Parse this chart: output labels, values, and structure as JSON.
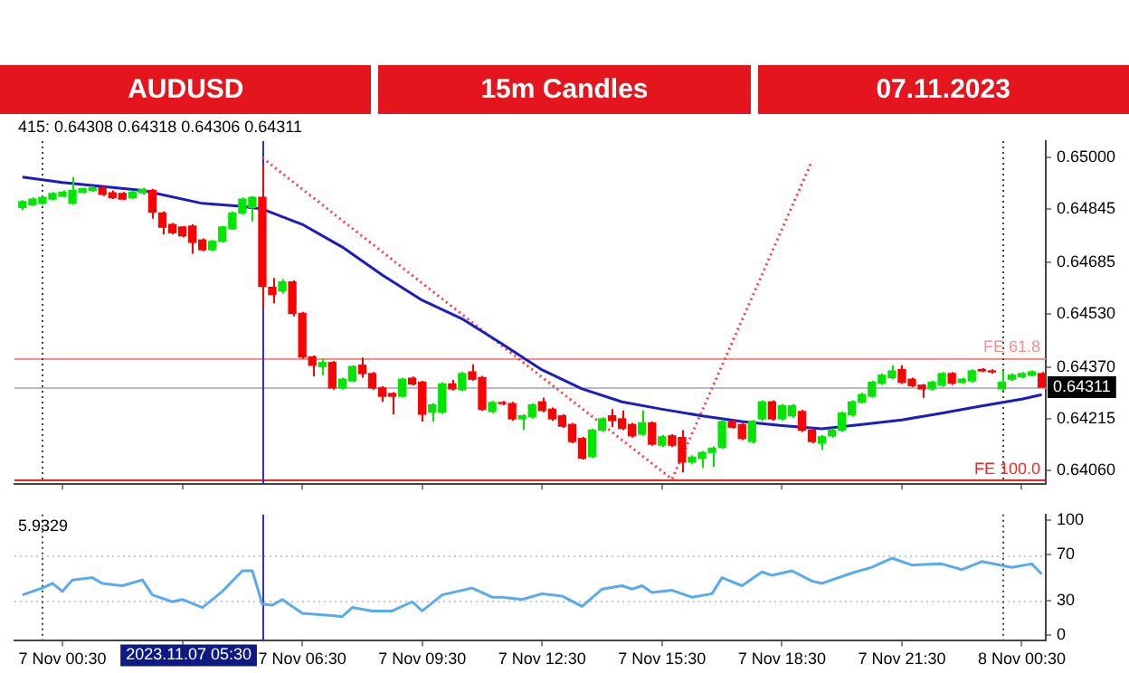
{
  "chart_data": [
    {
      "type": "candlestick",
      "title": "AUDUSD",
      "subtitle": "15m Candles",
      "annotations": [
        "07.11.2023",
        "415: 0.64308 0.64318 0.64306 0.64311",
        {
          "text": "0.64311",
          "y": 0.64311
        }
      ],
      "x": [
        "2023-11-06T23:30",
        "2023-11-06T23:45",
        "2023-11-07T00:00",
        "2023-11-07T00:15",
        "2023-11-07T00:30",
        "2023-11-07T00:45",
        "2023-11-07T01:00",
        "2023-11-07T01:15",
        "2023-11-07T01:30",
        "2023-11-07T01:45",
        "2023-11-07T02:00",
        "2023-11-07T02:15",
        "2023-11-07T02:30",
        "2023-11-07T02:45",
        "2023-11-07T03:00",
        "2023-11-07T03:15",
        "2023-11-07T03:30",
        "2023-11-07T03:45",
        "2023-11-07T04:00",
        "2023-11-07T04:15",
        "2023-11-07T04:30",
        "2023-11-07T04:45",
        "2023-11-07T05:00",
        "2023-11-07T05:15",
        "2023-11-07T05:30",
        "2023-11-07T05:45",
        "2023-11-07T06:00",
        "2023-11-07T06:15",
        "2023-11-07T06:30",
        "2023-11-07T06:45",
        "2023-11-07T07:00",
        "2023-11-07T07:15",
        "2023-11-07T07:30",
        "2023-11-07T07:45",
        "2023-11-07T08:00",
        "2023-11-07T08:15",
        "2023-11-07T08:30",
        "2023-11-07T08:45",
        "2023-11-07T09:00",
        "2023-11-07T09:15",
        "2023-11-07T09:30",
        "2023-11-07T09:45",
        "2023-11-07T10:00",
        "2023-11-07T10:15",
        "2023-11-07T10:30",
        "2023-11-07T10:45",
        "2023-11-07T11:00",
        "2023-11-07T11:15",
        "2023-11-07T11:30",
        "2023-11-07T11:45",
        "2023-11-07T12:00",
        "2023-11-07T12:15",
        "2023-11-07T12:30",
        "2023-11-07T12:45",
        "2023-11-07T13:00",
        "2023-11-07T13:15",
        "2023-11-07T13:30",
        "2023-11-07T13:45",
        "2023-11-07T14:00",
        "2023-11-07T14:15",
        "2023-11-07T14:30",
        "2023-11-07T14:45",
        "2023-11-07T15:00",
        "2023-11-07T15:15",
        "2023-11-07T15:30",
        "2023-11-07T15:45",
        "2023-11-07T16:00",
        "2023-11-07T16:15",
        "2023-11-07T16:30",
        "2023-11-07T16:45",
        "2023-11-07T17:00",
        "2023-11-07T17:15",
        "2023-11-07T17:30",
        "2023-11-07T17:45",
        "2023-11-07T18:00",
        "2023-11-07T18:15",
        "2023-11-07T18:30",
        "2023-11-07T18:45",
        "2023-11-07T19:00",
        "2023-11-07T19:15",
        "2023-11-07T19:30",
        "2023-11-07T19:45",
        "2023-11-07T20:00",
        "2023-11-07T20:15",
        "2023-11-07T20:30",
        "2023-11-07T20:45",
        "2023-11-07T21:00",
        "2023-11-07T21:15",
        "2023-11-07T21:30",
        "2023-11-07T21:45",
        "2023-11-07T22:00",
        "2023-11-07T22:15",
        "2023-11-07T22:30",
        "2023-11-07T22:45",
        "2023-11-07T23:00",
        "2023-11-07T23:15",
        "2023-11-07T23:30",
        "2023-11-07T23:45",
        "2023-11-08T00:00",
        "2023-11-08T00:15",
        "2023-11-08T00:30",
        "2023-11-08T00:45",
        "2023-11-08T01:00"
      ],
      "ohlc": [
        [
          0.64851,
          0.64873,
          0.64843,
          0.64868
        ],
        [
          0.64859,
          0.64881,
          0.64856,
          0.64876
        ],
        [
          0.64864,
          0.64885,
          0.64859,
          0.64881
        ],
        [
          0.64876,
          0.64897,
          0.64873,
          0.64893
        ],
        [
          0.64885,
          0.64902,
          0.64881,
          0.64897
        ],
        [
          0.64864,
          0.64942,
          0.64859,
          0.64902
        ],
        [
          0.64897,
          0.6491,
          0.64893,
          0.64907
        ],
        [
          0.64902,
          0.64915,
          0.64897,
          0.6491
        ],
        [
          0.6491,
          0.64915,
          0.64885,
          0.6489
        ],
        [
          0.64895,
          0.64902,
          0.64876,
          0.64881
        ],
        [
          0.64893,
          0.64897,
          0.64873,
          0.64876
        ],
        [
          0.64881,
          0.64902,
          0.64876,
          0.64897
        ],
        [
          0.64895,
          0.6491,
          0.6489,
          0.64905
        ],
        [
          0.64902,
          0.64907,
          0.64817,
          0.64837
        ],
        [
          0.64834,
          0.64839,
          0.6477,
          0.64792
        ],
        [
          0.648,
          0.64804,
          0.6477,
          0.64775
        ],
        [
          0.64792,
          0.64795,
          0.64761,
          0.64766
        ],
        [
          0.64795,
          0.648,
          0.64712,
          0.64746
        ],
        [
          0.64753,
          0.64758,
          0.64719,
          0.64724
        ],
        [
          0.64724,
          0.64753,
          0.64719,
          0.64749
        ],
        [
          0.64749,
          0.64795,
          0.64746,
          0.64792
        ],
        [
          0.64787,
          0.64839,
          0.64783,
          0.64834
        ],
        [
          0.64834,
          0.64881,
          0.64829,
          0.64876
        ],
        [
          0.64851,
          0.64885,
          0.64809,
          0.64881
        ],
        [
          0.64881,
          0.64978,
          0.64546,
          0.64614
        ],
        [
          0.64611,
          0.64639,
          0.64563,
          0.64589
        ],
        [
          0.646,
          0.64636,
          0.64592,
          0.64627
        ],
        [
          0.64627,
          0.64632,
          0.64524,
          0.64533
        ],
        [
          0.64533,
          0.64537,
          0.64397,
          0.64402
        ],
        [
          0.64402,
          0.64406,
          0.64343,
          0.64377
        ],
        [
          0.64373,
          0.64397,
          0.64347,
          0.64385
        ],
        [
          0.64385,
          0.6439,
          0.64304,
          0.64309
        ],
        [
          0.64309,
          0.6434,
          0.64304,
          0.64335
        ],
        [
          0.6433,
          0.64377,
          0.64326,
          0.64373
        ],
        [
          0.64377,
          0.644,
          0.6434,
          0.64352
        ],
        [
          0.64352,
          0.64357,
          0.64304,
          0.64309
        ],
        [
          0.64309,
          0.64314,
          0.64267,
          0.64284
        ],
        [
          0.64292,
          0.64296,
          0.6423,
          0.64284
        ],
        [
          0.64284,
          0.6434,
          0.6428,
          0.64335
        ],
        [
          0.64338,
          0.64343,
          0.64316,
          0.64321
        ],
        [
          0.64326,
          0.6433,
          0.64208,
          0.6423
        ],
        [
          0.64236,
          0.64262,
          0.64208,
          0.64258
        ],
        [
          0.64236,
          0.64326,
          0.64231,
          0.64321
        ],
        [
          0.64321,
          0.64333,
          0.64301,
          0.64306
        ],
        [
          0.64304,
          0.64357,
          0.64299,
          0.64352
        ],
        [
          0.64357,
          0.6438,
          0.64331,
          0.64335
        ],
        [
          0.6434,
          0.64345,
          0.6424,
          0.64245
        ],
        [
          0.64238,
          0.6427,
          0.64233,
          0.64265
        ],
        [
          0.64265,
          0.6427,
          0.64257,
          0.64262
        ],
        [
          0.64262,
          0.64267,
          0.64211,
          0.64216
        ],
        [
          0.64216,
          0.6423,
          0.64182,
          0.64225
        ],
        [
          0.64222,
          0.64262,
          0.64217,
          0.64258
        ],
        [
          0.64267,
          0.6428,
          0.64236,
          0.64241
        ],
        [
          0.64245,
          0.6425,
          0.64211,
          0.64216
        ],
        [
          0.64225,
          0.6423,
          0.64189,
          0.64194
        ],
        [
          0.64199,
          0.64204,
          0.64143,
          0.64148
        ],
        [
          0.64157,
          0.64162,
          0.64094,
          0.64098
        ],
        [
          0.64103,
          0.64187,
          0.64098,
          0.64182
        ],
        [
          0.64182,
          0.64221,
          0.64177,
          0.64216
        ],
        [
          0.64225,
          0.64245,
          0.64191,
          0.64211
        ],
        [
          0.64216,
          0.64241,
          0.64182,
          0.64187
        ],
        [
          0.64199,
          0.64204,
          0.6416,
          0.64165
        ],
        [
          0.6417,
          0.64241,
          0.64165,
          0.64204
        ],
        [
          0.64204,
          0.64208,
          0.64135,
          0.6414
        ],
        [
          0.64137,
          0.64167,
          0.64131,
          0.64162
        ],
        [
          0.64165,
          0.6417,
          0.64131,
          0.64137
        ],
        [
          0.6416,
          0.64182,
          0.64055,
          0.64086
        ],
        [
          0.64086,
          0.64106,
          0.64081,
          0.64101
        ],
        [
          0.64098,
          0.6412,
          0.64069,
          0.64115
        ],
        [
          0.64115,
          0.64133,
          0.64072,
          0.64128
        ],
        [
          0.64131,
          0.64213,
          0.64126,
          0.64208
        ],
        [
          0.64208,
          0.64213,
          0.64187,
          0.64191
        ],
        [
          0.64199,
          0.64204,
          0.64152,
          0.64157
        ],
        [
          0.64148,
          0.64213,
          0.64143,
          0.64208
        ],
        [
          0.64216,
          0.64272,
          0.64211,
          0.64267
        ],
        [
          0.64267,
          0.64272,
          0.64211,
          0.64216
        ],
        [
          0.64216,
          0.6426,
          0.64211,
          0.64255
        ],
        [
          0.64225,
          0.6426,
          0.64219,
          0.64255
        ],
        [
          0.64238,
          0.64243,
          0.64177,
          0.64182
        ],
        [
          0.64182,
          0.64187,
          0.64143,
          0.64148
        ],
        [
          0.64143,
          0.64167,
          0.64123,
          0.64162
        ],
        [
          0.64165,
          0.64187,
          0.6416,
          0.64182
        ],
        [
          0.64182,
          0.64238,
          0.64177,
          0.64233
        ],
        [
          0.64228,
          0.64272,
          0.64223,
          0.64267
        ],
        [
          0.64267,
          0.64294,
          0.64262,
          0.64289
        ],
        [
          0.64284,
          0.64331,
          0.6428,
          0.64326
        ],
        [
          0.64323,
          0.64352,
          0.64318,
          0.64347
        ],
        [
          0.6434,
          0.64377,
          0.64335,
          0.6436
        ],
        [
          0.64364,
          0.64377,
          0.64321,
          0.64326
        ],
        [
          0.64335,
          0.6434,
          0.64311,
          0.64316
        ],
        [
          0.64317,
          0.64321,
          0.64279,
          0.64306
        ],
        [
          0.64306,
          0.64331,
          0.64301,
          0.64326
        ],
        [
          0.64317,
          0.64357,
          0.64312,
          0.64352
        ],
        [
          0.64352,
          0.64357,
          0.64318,
          0.64323
        ],
        [
          0.64326,
          0.6434,
          0.64321,
          0.64335
        ],
        [
          0.6433,
          0.64365,
          0.64325,
          0.6436
        ],
        [
          0.64364,
          0.64368,
          0.64357,
          0.6436
        ],
        [
          0.6436,
          0.64365,
          0.64352,
          0.64357
        ],
        [
          0.64306,
          0.6436,
          0.64301,
          0.64326
        ],
        [
          0.64335,
          0.64352,
          0.6433,
          0.64347
        ],
        [
          0.64343,
          0.64357,
          0.64338,
          0.64352
        ],
        [
          0.64347,
          0.64362,
          0.64343,
          0.64357
        ],
        [
          0.64352,
          0.64357,
          0.64311,
          0.64311
        ]
      ],
      "colors": [
        "#00e600",
        "#00e600",
        "#00e600",
        "#00e600",
        "#00e600",
        "#00e600",
        "#00e600",
        "#00e600",
        "#ff0000",
        "#ff0000",
        "#ff0000",
        "#00e600",
        "#00e600",
        "#ff0000",
        "#ff0000",
        "#ff0000",
        "#ff0000",
        "#ff0000",
        "#ff0000",
        "#00e600",
        "#00e600",
        "#00e600",
        "#00e600",
        "#00e600",
        "#ff0000",
        "#ff0000",
        "#00e600",
        "#ff0000",
        "#ff0000",
        "#ff0000",
        "#00e600",
        "#ff0000",
        "#00e600",
        "#00e600",
        "#ff0000",
        "#ff0000",
        "#ff0000",
        "#ff0000",
        "#00e600",
        "#ff0000",
        "#ff0000",
        "#00e600",
        "#00e600",
        "#ff0000",
        "#00e600",
        "#ff0000",
        "#ff0000",
        "#00e600",
        "#ff0000",
        "#ff0000",
        "#00e600",
        "#00e600",
        "#ff0000",
        "#ff0000",
        "#ff0000",
        "#ff0000",
        "#ff0000",
        "#00e600",
        "#00e600",
        "#ff0000",
        "#ff0000",
        "#ff0000",
        "#00e600",
        "#ff0000",
        "#00e600",
        "#ff0000",
        "#ff0000",
        "#00e600",
        "#00e600",
        "#00e600",
        "#00e600",
        "#ff0000",
        "#ff0000",
        "#00e600",
        "#00e600",
        "#ff0000",
        "#00e600",
        "#00e600",
        "#ff0000",
        "#ff0000",
        "#00e600",
        "#00e600",
        "#00e600",
        "#00e600",
        "#00e600",
        "#00e600",
        "#00e600",
        "#00e600",
        "#ff0000",
        "#ff0000",
        "#ff0000",
        "#00e600",
        "#00e600",
        "#ff0000",
        "#00e600",
        "#00e600",
        "#ff0000",
        "#ff0000",
        "#00e600",
        "#00e600",
        "#00e600",
        "#00e600",
        "#ff0000"
      ],
      "series": [
        {
          "type": "line",
          "color": "#1c1cc4",
          "x": [
            "2023-11-06T23:30",
            "2023-11-07T00:30",
            "2023-11-07T02:30",
            "2023-11-07T04:00",
            "2023-11-07T05:00",
            "2023-11-07T05:30",
            "2023-11-07T06:30",
            "2023-11-07T07:30",
            "2023-11-07T08:30",
            "2023-11-07T09:30",
            "2023-11-07T10:30",
            "2023-11-07T11:30",
            "2023-11-07T12:30",
            "2023-11-07T13:30",
            "2023-11-07T14:30",
            "2023-11-07T15:30",
            "2023-11-07T16:30",
            "2023-11-07T17:30",
            "2023-11-07T18:30",
            "2023-11-07T19:30",
            "2023-11-07T20:30",
            "2023-11-07T21:30",
            "2023-11-07T22:30",
            "2023-11-07T23:30",
            "2023-11-08T00:30",
            "2023-11-08T01:00"
          ],
          "values": [
            0.64942,
            0.64926,
            0.64902,
            0.64863,
            0.64854,
            0.64846,
            0.648,
            0.64732,
            0.64648,
            0.64572,
            0.64516,
            0.64441,
            0.64363,
            0.64306,
            0.64267,
            0.64245,
            0.64225,
            0.64208,
            0.64196,
            0.64186,
            0.64199,
            0.64213,
            0.64233,
            0.64255,
            0.64275,
            0.64289
          ]
        },
        {
          "type": "line",
          "color": "#ff3b3b",
          "line_style": "dotted",
          "x": [
            "2023-11-07T05:30",
            "2023-11-07T15:45",
            "2023-11-07T19:15"
          ],
          "values": [
            0.65,
            0.64035,
            0.6499
          ]
        }
      ],
      "ref_lines": [
        {
          "axis": "y",
          "value": 0.644,
          "label": "FE 61.8",
          "color": "#ff8c8c"
        },
        {
          "axis": "y",
          "value": 0.64035,
          "label": "FE 100.0",
          "color": "#ff2020"
        },
        {
          "axis": "y",
          "value": 0.64311,
          "label": null,
          "color": "#b8b8c8"
        },
        {
          "axis": "x",
          "value": "2023-11-07T05:30",
          "label": null,
          "color": "#3030c8"
        },
        {
          "axis": "x",
          "value": "2023-11-07T00:00",
          "label": null,
          "color": "#444444",
          "line_style": "dotted"
        },
        {
          "axis": "x",
          "value": "2023-11-08T00:00",
          "label": null,
          "color": "#444444",
          "line_style": "dotted"
        }
      ],
      "xlim": [
        "2023-11-06T23:18",
        "2023-11-08T01:06"
      ],
      "xticks": [
        {
          "value": "2023-11-07T00:30",
          "label": null
        },
        {
          "value": "2023-11-07T03:30",
          "label": null
        },
        {
          "value": "2023-11-07T06:30",
          "label": null
        },
        {
          "value": "2023-11-07T09:30",
          "label": null
        },
        {
          "value": "2023-11-07T12:30",
          "label": null
        },
        {
          "value": "2023-11-07T15:30",
          "label": null
        },
        {
          "value": "2023-11-07T18:30",
          "label": null
        },
        {
          "value": "2023-11-07T21:30",
          "label": null
        },
        {
          "value": "2023-11-08T00:30",
          "label": null
        }
      ],
      "ylim": [
        0.6402,
        0.6505
      ],
      "yticks": [
        {
          "value": 0.65,
          "label": "0.65000"
        },
        {
          "value": 0.64845,
          "label": "0.64845"
        },
        {
          "value": 0.64685,
          "label": "0.64685"
        },
        {
          "value": 0.6453,
          "label": "0.64530"
        },
        {
          "value": 0.6437,
          "label": "0.64370"
        },
        {
          "value": 0.64215,
          "label": "0.64215"
        },
        {
          "value": 0.6406,
          "label": "0.64060"
        }
      ],
      "tick_labels": "y"
    },
    {
      "type": "line",
      "color": "#5aaaf0",
      "annotations": [
        "5.9329"
      ],
      "x": [
        "2023-11-06T23:30",
        "2023-11-07T00:00",
        "2023-11-07T00:15",
        "2023-11-07T00:30",
        "2023-11-07T00:45",
        "2023-11-07T01:15",
        "2023-11-07T01:30",
        "2023-11-07T02:00",
        "2023-11-07T02:30",
        "2023-11-07T02:45",
        "2023-11-07T03:15",
        "2023-11-07T03:30",
        "2023-11-07T04:00",
        "2023-11-07T04:30",
        "2023-11-07T05:00",
        "2023-11-07T05:15",
        "2023-11-07T05:30",
        "2023-11-07T05:45",
        "2023-11-07T06:00",
        "2023-11-07T06:30",
        "2023-11-07T07:15",
        "2023-11-07T07:30",
        "2023-11-07T07:45",
        "2023-11-07T08:15",
        "2023-11-07T08:45",
        "2023-11-07T09:15",
        "2023-11-07T09:30",
        "2023-11-07T10:00",
        "2023-11-07T10:45",
        "2023-11-07T11:15",
        "2023-11-07T11:30",
        "2023-11-07T12:00",
        "2023-11-07T12:30",
        "2023-11-07T13:00",
        "2023-11-07T13:30",
        "2023-11-07T14:00",
        "2023-11-07T14:30",
        "2023-11-07T14:45",
        "2023-11-07T15:00",
        "2023-11-07T15:15",
        "2023-11-07T15:45",
        "2023-11-07T16:15",
        "2023-11-07T16:45",
        "2023-11-07T17:00",
        "2023-11-07T17:30",
        "2023-11-07T18:00",
        "2023-11-07T18:15",
        "2023-11-07T18:45",
        "2023-11-07T19:15",
        "2023-11-07T19:30",
        "2023-11-07T20:15",
        "2023-11-07T20:45",
        "2023-11-07T21:15",
        "2023-11-07T21:45",
        "2023-11-07T22:30",
        "2023-11-07T23:00",
        "2023-11-07T23:30",
        "2023-11-08T00:15",
        "2023-11-08T00:45",
        "2023-11-08T01:00"
      ],
      "values": [
        35,
        41,
        45,
        38,
        48,
        50,
        45,
        43,
        48,
        35,
        29,
        31,
        24,
        38,
        56,
        56,
        27,
        26,
        31,
        19,
        17,
        16,
        24,
        21,
        21,
        29,
        21,
        35,
        41,
        33,
        33,
        31,
        36,
        34,
        25,
        40,
        43,
        40,
        43,
        37,
        39,
        33,
        36,
        50,
        43,
        55,
        52,
        56,
        47,
        45,
        54,
        59,
        67,
        61,
        62,
        57,
        64,
        59,
        62,
        53
      ],
      "ref_lines": [
        {
          "axis": "y",
          "value": 30,
          "label": null,
          "color": "#c8c8c8",
          "line_style": "dotted"
        },
        {
          "axis": "y",
          "value": 70,
          "label": null,
          "color": "#c8c8c8",
          "line_style": "dotted"
        },
        {
          "axis": "x",
          "value": "2023-11-07T05:30",
          "label": "2023.11.07 05:30",
          "color": "#3030c8"
        },
        {
          "axis": "x",
          "value": "2023-11-07T00:00",
          "label": null,
          "color": "#444444",
          "line_style": "dotted"
        },
        {
          "axis": "x",
          "value": "2023-11-08T00:00",
          "label": null,
          "color": "#444444",
          "line_style": "dotted"
        }
      ],
      "xlim": [
        "2023-11-06T23:18",
        "2023-11-08T01:06"
      ],
      "xticks": [
        {
          "value": "2023-11-07T00:30",
          "label": "7 Nov 00:30"
        },
        {
          "value": "2023-11-07T03:30",
          "label": null
        },
        {
          "value": "2023-11-07T06:30",
          "label": "7 Nov 06:30"
        },
        {
          "value": "2023-11-07T09:30",
          "label": "7 Nov 09:30"
        },
        {
          "value": "2023-11-07T12:30",
          "label": "7 Nov 12:30"
        },
        {
          "value": "2023-11-07T15:30",
          "label": "7 Nov 15:30"
        },
        {
          "value": "2023-11-07T18:30",
          "label": "7 Nov 18:30"
        },
        {
          "value": "2023-11-07T21:30",
          "label": "7 Nov 21:30"
        },
        {
          "value": "2023-11-08T00:30",
          "label": "8 Nov 00:30"
        }
      ],
      "ylim": [
        -5,
        105
      ],
      "yticks": [
        0,
        30,
        70,
        100
      ]
    }
  ]
}
